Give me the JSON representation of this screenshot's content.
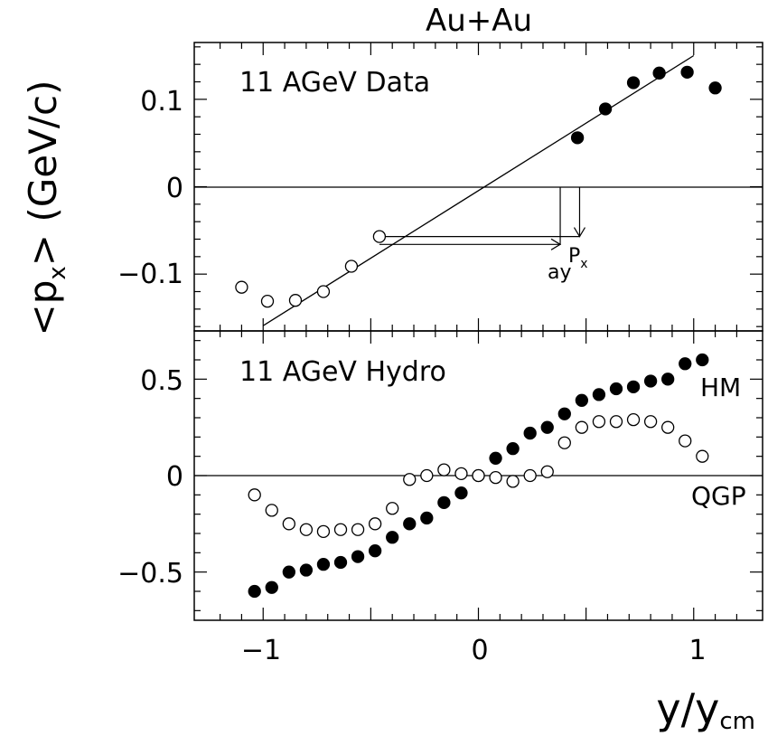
{
  "title": "Au+Au",
  "ylabel_left": "<p",
  "ylabel_sub": "x",
  "ylabel_right": "> (GeV/c)",
  "xlabel_main": "y/y",
  "xlabel_sub": "cm",
  "x_ticks": [
    "−1",
    "0",
    "1"
  ],
  "top_y_ticks": [
    "0.1",
    "0",
    "−0.1"
  ],
  "bottom_y_ticks": [
    "0.5",
    "0",
    "−0.5"
  ],
  "top_annotation": {
    "panel_label": "11 AGeV Data",
    "ay_label": "ay",
    "px_label": "P",
    "px_sub": "x"
  },
  "bottom_annotation": {
    "panel_label": "11 AGeV Hydro",
    "hm_label": "HM",
    "qgp_label": "QGP"
  },
  "chart_data": [
    {
      "type": "scatter",
      "panel": "top",
      "title": "11 AGeV Data",
      "xlim": [
        -1.32,
        1.32
      ],
      "ylim": [
        -0.165,
        0.165
      ],
      "series": [
        {
          "name": "",
          "marker": "filled",
          "x": [
            0.46,
            0.59,
            0.72,
            0.84,
            0.97,
            1.1
          ],
          "y": [
            0.056,
            0.089,
            0.119,
            0.13,
            0.131,
            0.113
          ]
        },
        {
          "name": "",
          "marker": "open",
          "x": [
            -1.1,
            -0.98,
            -0.85,
            -0.72,
            -0.59,
            -0.46
          ],
          "y": [
            -0.115,
            -0.131,
            -0.13,
            -0.12,
            -0.091,
            -0.057
          ]
        }
      ],
      "fit_line": {
        "x": [
          -1.0,
          1.0
        ],
        "y": [
          -0.159,
          0.15
        ]
      },
      "arrows": {
        "ay": {
          "x_from": -0.46,
          "x_to": 0.38,
          "y": -0.066,
          "y_top": 0.0
        },
        "px": {
          "x_from": -0.46,
          "x_to": 0.47,
          "y": -0.057,
          "y_top": 0.0
        }
      }
    },
    {
      "type": "scatter",
      "panel": "bottom",
      "title": "11 AGeV Hydro",
      "xlim": [
        -1.32,
        1.32
      ],
      "ylim": [
        -0.75,
        0.75
      ],
      "series": [
        {
          "name": "HM",
          "marker": "filled",
          "x": [
            -1.04,
            -0.96,
            -0.88,
            -0.8,
            -0.72,
            -0.64,
            -0.56,
            -0.48,
            -0.4,
            -0.32,
            -0.24,
            -0.16,
            -0.08,
            0.0,
            0.08,
            0.16,
            0.24,
            0.32,
            0.4,
            0.48,
            0.56,
            0.64,
            0.72,
            0.8,
            0.88,
            0.96,
            1.04
          ],
          "y": [
            -0.6,
            -0.58,
            -0.5,
            -0.49,
            -0.46,
            -0.45,
            -0.42,
            -0.39,
            -0.32,
            -0.25,
            -0.22,
            -0.14,
            -0.09,
            0.0,
            0.09,
            0.14,
            0.22,
            0.25,
            0.32,
            0.39,
            0.42,
            0.45,
            0.46,
            0.49,
            0.5,
            0.58,
            0.6
          ]
        },
        {
          "name": "QGP",
          "marker": "open",
          "x": [
            -1.04,
            -0.96,
            -0.88,
            -0.8,
            -0.72,
            -0.64,
            -0.56,
            -0.48,
            -0.4,
            -0.32,
            -0.24,
            -0.16,
            -0.08,
            0.0,
            0.08,
            0.16,
            0.24,
            0.32,
            0.4,
            0.48,
            0.56,
            0.64,
            0.72,
            0.8,
            0.88,
            0.96,
            1.04
          ],
          "y": [
            -0.1,
            -0.18,
            -0.25,
            -0.28,
            -0.29,
            -0.28,
            -0.28,
            -0.25,
            -0.17,
            -0.02,
            0.0,
            0.03,
            0.01,
            0.0,
            -0.01,
            -0.03,
            0.0,
            0.02,
            0.17,
            0.25,
            0.28,
            0.28,
            0.29,
            0.28,
            0.25,
            0.18,
            0.1
          ]
        }
      ]
    }
  ]
}
